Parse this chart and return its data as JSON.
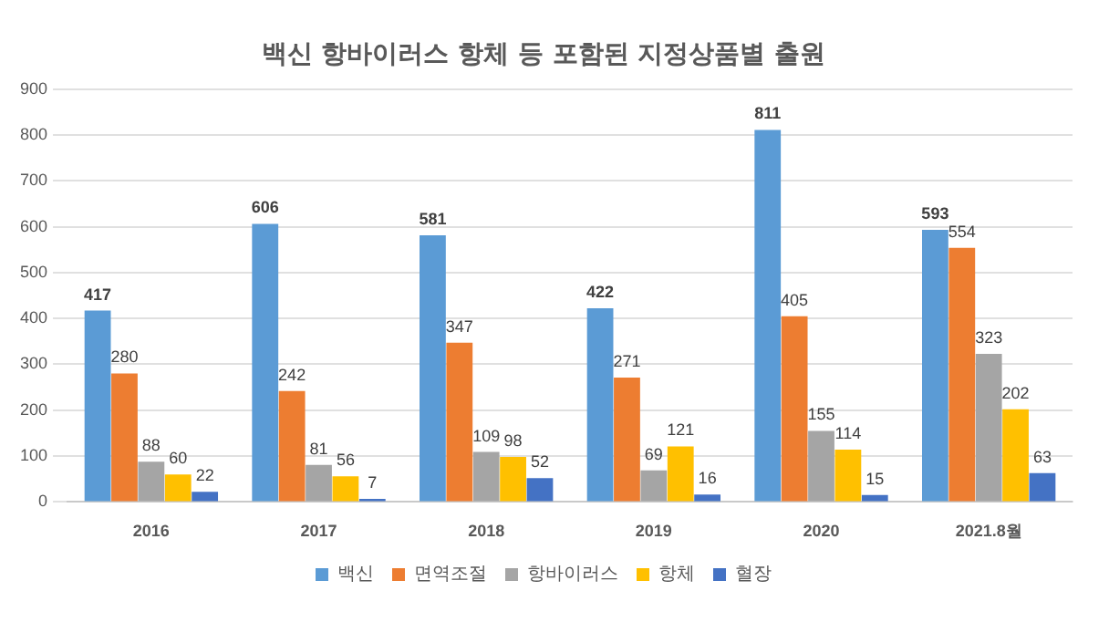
{
  "chart_data": {
    "type": "bar",
    "title": "백신 항바이러스 항체 등 포함된 지정상품별 출원",
    "categories": [
      "2016",
      "2017",
      "2018",
      "2019",
      "2020",
      "2021.8월"
    ],
    "series": [
      {
        "name": "백신",
        "color": "#5b9bd5",
        "values": [
          417,
          606,
          581,
          422,
          811,
          593
        ]
      },
      {
        "name": "면역조절",
        "color": "#ed7d31",
        "values": [
          280,
          242,
          347,
          271,
          405,
          554
        ]
      },
      {
        "name": "항바이러스",
        "color": "#a5a5a5",
        "values": [
          88,
          81,
          109,
          69,
          155,
          323
        ]
      },
      {
        "name": "항체",
        "color": "#ffc000",
        "values": [
          60,
          56,
          98,
          121,
          114,
          202
        ]
      },
      {
        "name": "혈장",
        "color": "#4472c4",
        "values": [
          22,
          7,
          52,
          16,
          15,
          63
        ]
      }
    ],
    "ylim": [
      0,
      900
    ],
    "yticks": [
      0,
      100,
      200,
      300,
      400,
      500,
      600,
      700,
      800,
      900
    ],
    "grid": "y",
    "legend": "bottom",
    "data_labels": true
  }
}
